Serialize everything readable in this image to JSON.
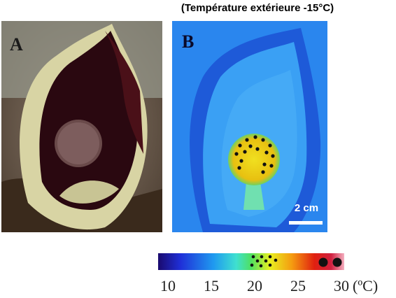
{
  "title": "(Température extérieure -15°C)",
  "panels": [
    {
      "label": "A"
    },
    {
      "label": "B",
      "scale_bar": "2 cm"
    }
  ],
  "colorbar": {
    "ticks": [
      10,
      15,
      20,
      25,
      30
    ],
    "unit": "(ºC)"
  }
}
